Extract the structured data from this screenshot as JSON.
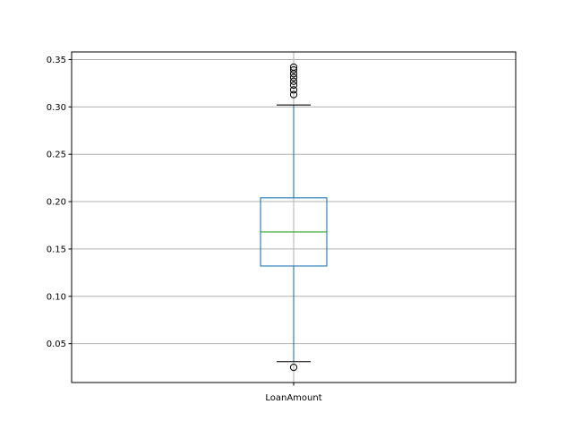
{
  "chart_data": {
    "type": "box",
    "categories": [
      "LoanAmount"
    ],
    "series": [
      {
        "whisker_low": 0.031,
        "q1": 0.132,
        "median": 0.168,
        "q3": 0.204,
        "whisker_high": 0.302,
        "outliers": [
          0.025,
          0.313,
          0.318,
          0.323,
          0.327,
          0.331,
          0.335,
          0.339,
          0.342
        ]
      }
    ],
    "title": "",
    "xlabel": "",
    "ylabel": "",
    "ylim": [
      0.009,
      0.358
    ],
    "yticks": [
      0.05,
      0.1,
      0.15,
      0.2,
      0.25,
      0.3,
      0.35
    ],
    "ytick_labels": [
      "0.05",
      "0.10",
      "0.15",
      "0.20",
      "0.25",
      "0.30",
      "0.35"
    ],
    "grid": true,
    "colors": {
      "box": "#1f77b4",
      "median": "#2ca02c",
      "cap": "#000000",
      "outlier": "#000000",
      "grid": "#b0b0b0"
    }
  }
}
